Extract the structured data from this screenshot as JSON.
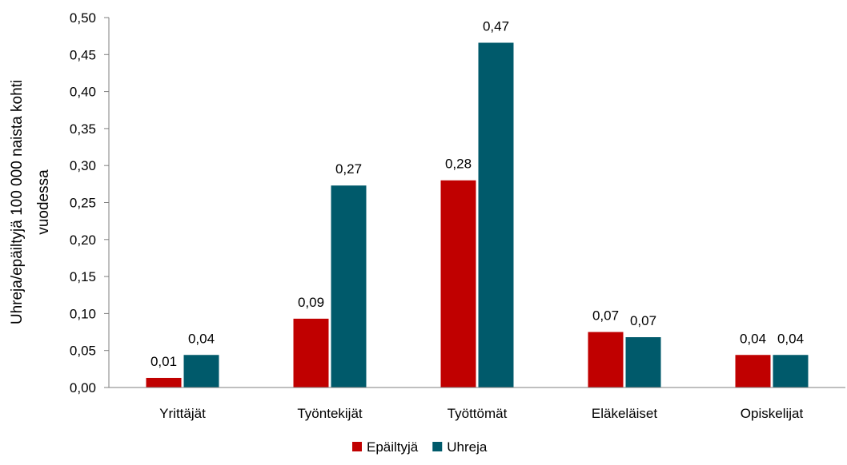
{
  "chart_data": {
    "type": "bar",
    "title": "",
    "xlabel": "",
    "ylabel_lines": [
      "Uhreja/epäiltyjä 100 000 naista kohti",
      "vuodessa"
    ],
    "ylim": [
      0,
      0.5
    ],
    "yticks": [
      0,
      0.05,
      0.1,
      0.15,
      0.2,
      0.25,
      0.3,
      0.35,
      0.4,
      0.45,
      0.5
    ],
    "ytick_labels": [
      "0,00",
      "0,05",
      "0,10",
      "0,15",
      "0,20",
      "0,25",
      "0,30",
      "0,35",
      "0,40",
      "0,45",
      "0,50"
    ],
    "grid": false,
    "legend_position": "bottom",
    "categories": [
      "Yrittäjät",
      "Työntekijät",
      "Työttömät",
      "Eläkeläiset",
      "Opiskelijat"
    ],
    "series": [
      {
        "name": "Epäiltyjä",
        "color": "#c00000",
        "values": [
          0.013,
          0.093,
          0.28,
          0.075,
          0.044
        ],
        "labels": [
          "0,01",
          "0,09",
          "0,28",
          "0,07",
          "0,04"
        ]
      },
      {
        "name": "Uhreja",
        "color": "#005a6b",
        "values": [
          0.044,
          0.273,
          0.466,
          0.068,
          0.044
        ],
        "labels": [
          "0,04",
          "0,27",
          "0,47",
          "0,07",
          "0,04"
        ]
      }
    ]
  }
}
